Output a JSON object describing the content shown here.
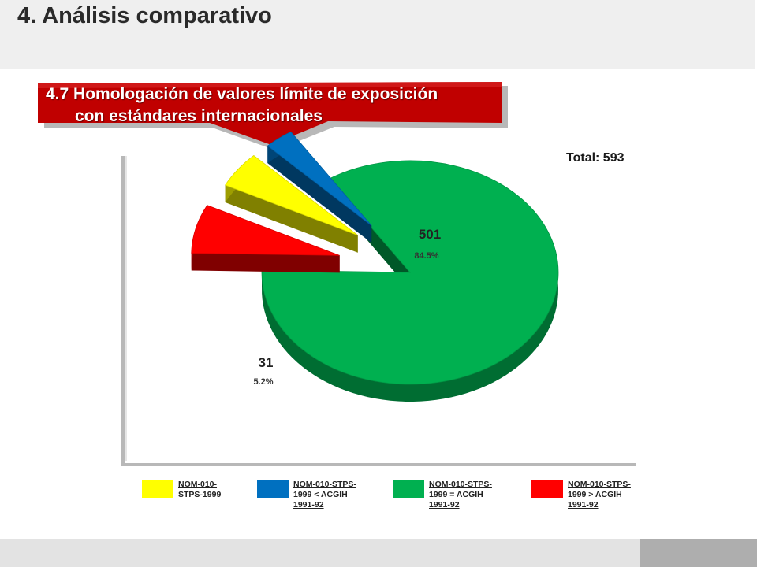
{
  "page": {
    "title": "4. Análisis comparativo"
  },
  "banner": {
    "line1": "4.7 Homologación de valores límite de exposición",
    "line2": "con estándares internacionales"
  },
  "total_label": "Total: 593",
  "colors": {
    "green": "#00b050",
    "blue": "#0070c0",
    "yellow": "#ffff00",
    "red": "#ff0000",
    "banner": "#c00000"
  },
  "chart_data": {
    "type": "pie",
    "title": "",
    "total": 593,
    "slices": [
      {
        "label": "NOM-010-STPS-1999 = ACGIH 1991-92",
        "value": 501,
        "percent": "84.5%",
        "color": "#00b050"
      },
      {
        "label": "NOM-010-STPS-1999 > ACGIH 1991-92",
        "value": 42,
        "percent": "7.1%",
        "color": "#ff0000"
      },
      {
        "label": "NOM-010-STPS-1999",
        "value": 31,
        "percent": "5.2%",
        "color": "#ffff00"
      },
      {
        "label": "NOM-010-STPS-1999 < ACGIH 1991-92",
        "value": 19,
        "percent": "3.2%",
        "color": "#0070c0"
      }
    ],
    "legend": [
      {
        "line1": "NOM-010-",
        "line2": "STPS-1999",
        "line3": "",
        "color": "#ffff00"
      },
      {
        "line1": "NOM-010-STPS-",
        "line2": "1999 < ACGIH",
        "line3": "1991-92",
        "color": "#0070c0"
      },
      {
        "line1": "NOM-010-STPS-",
        "line2": "1999 = ACGIH",
        "line3": "1991-92",
        "color": "#00b050"
      },
      {
        "line1": "NOM-010-STPS-",
        "line2": "1999 > ACGIH",
        "line3": "1991-92",
        "color": "#ff0000"
      }
    ]
  }
}
